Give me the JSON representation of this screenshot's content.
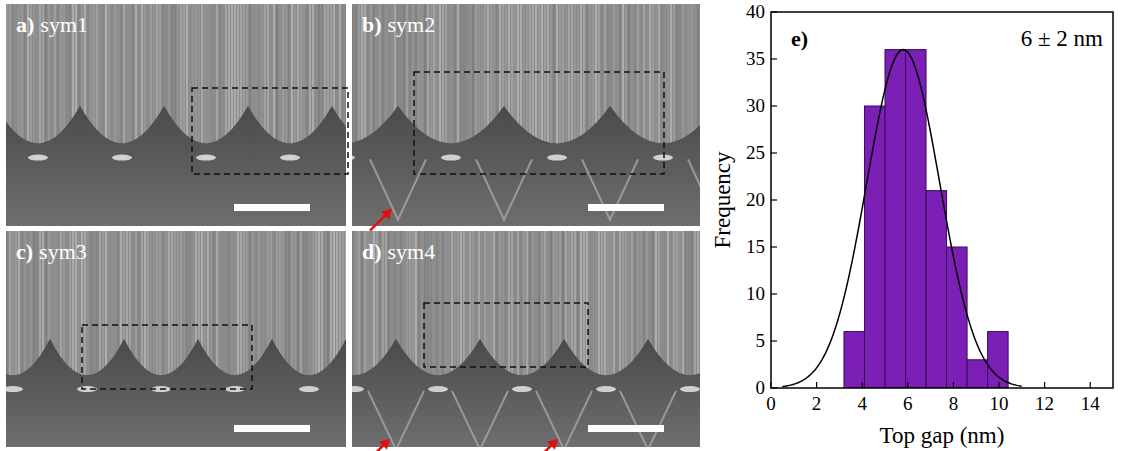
{
  "panels": [
    {
      "label": "a)",
      "title": "sym1",
      "arrows": false
    },
    {
      "label": "b)",
      "title": "sym2",
      "arrows": true
    },
    {
      "label": "c)",
      "title": "sym3",
      "arrows": false
    },
    {
      "label": "d)",
      "title": "sym4",
      "arrows": true
    }
  ],
  "chart_data": {
    "type": "histogram",
    "label": "e)",
    "annotation": "6 ± 2 nm",
    "x_label": "Top gap (nm)",
    "y_label": "Frequency",
    "bins": [
      3.2,
      4.1,
      5.0,
      5.9,
      6.8,
      7.7,
      8.6,
      9.5,
      10.4
    ],
    "values": [
      6,
      30,
      36,
      36,
      21,
      15,
      3,
      6
    ],
    "color": "#7b1fb5",
    "fit": {
      "mean": 5.8,
      "sd": 1.6,
      "peak": 36,
      "x_range": [
        0.5,
        11
      ]
    },
    "xlim": [
      0,
      15
    ],
    "xticks": [
      0,
      2,
      4,
      6,
      8,
      10,
      12,
      14
    ],
    "ylim": [
      0,
      40
    ],
    "yticks": [
      0,
      5,
      10,
      15,
      20,
      25,
      30,
      35,
      40
    ]
  }
}
